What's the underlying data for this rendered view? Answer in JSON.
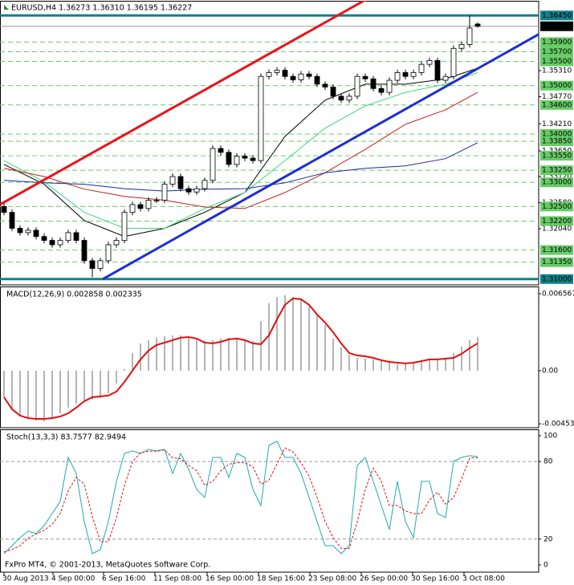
{
  "chart_data": [
    {
      "type": "candlestick",
      "title": "EURUSD,H4  1.36273 1.36310 1.36195 1.36227",
      "up_color": "#ffffff",
      "down_color": "#000000",
      "open": [
        1.325,
        1.3238,
        1.3205,
        1.3196,
        1.3201,
        1.3188,
        1.318,
        1.3171,
        1.318,
        1.3196,
        1.318,
        1.3138,
        1.3122,
        1.3138,
        1.3171,
        1.318,
        1.3238,
        1.3254,
        1.3246,
        1.3263,
        1.3263,
        1.3296,
        1.3312,
        1.3287,
        1.328,
        1.3287,
        1.3304,
        1.337,
        1.3362,
        1.3337,
        1.3354,
        1.335,
        1.3345,
        1.3519,
        1.3527,
        1.3532,
        1.3519,
        1.3512,
        1.3524,
        1.3519,
        1.3503,
        1.3497,
        1.3478,
        1.347,
        1.3478,
        1.3519,
        1.3514,
        1.3494,
        1.3486,
        1.3511,
        1.3527,
        1.3519,
        1.3527,
        1.3544,
        1.3552,
        1.3511,
        1.3519,
        1.3577,
        1.3585,
        1.36273
      ],
      "high": [
        1.3256,
        1.3244,
        1.3211,
        1.3207,
        1.3207,
        1.3194,
        1.3186,
        1.3186,
        1.3202,
        1.3202,
        1.3186,
        1.3144,
        1.3144,
        1.3177,
        1.3186,
        1.3244,
        1.326,
        1.326,
        1.3269,
        1.3269,
        1.3302,
        1.3318,
        1.3318,
        1.3293,
        1.3293,
        1.331,
        1.3376,
        1.3376,
        1.3368,
        1.336,
        1.336,
        1.3356,
        1.3525,
        1.3533,
        1.3538,
        1.3538,
        1.3525,
        1.353,
        1.353,
        1.3525,
        1.3509,
        1.3503,
        1.3484,
        1.3484,
        1.3525,
        1.3525,
        1.352,
        1.35,
        1.3517,
        1.3533,
        1.3533,
        1.3533,
        1.355,
        1.3558,
        1.3558,
        1.3525,
        1.3583,
        1.3591,
        1.3645,
        1.3631
      ],
      "low": [
        1.3232,
        1.3199,
        1.319,
        1.319,
        1.3182,
        1.3174,
        1.3165,
        1.3165,
        1.3174,
        1.3174,
        1.3132,
        1.3104,
        1.3116,
        1.3132,
        1.3165,
        1.3174,
        1.3232,
        1.324,
        1.324,
        1.3257,
        1.3257,
        1.329,
        1.3281,
        1.3274,
        1.3274,
        1.3281,
        1.3298,
        1.3356,
        1.3331,
        1.3331,
        1.3344,
        1.3339,
        1.3339,
        1.3513,
        1.3521,
        1.3513,
        1.3506,
        1.3506,
        1.3513,
        1.3497,
        1.3491,
        1.3472,
        1.3464,
        1.3464,
        1.3472,
        1.3508,
        1.3488,
        1.348,
        1.348,
        1.3505,
        1.3513,
        1.3513,
        1.3521,
        1.3538,
        1.3505,
        1.3505,
        1.3513,
        1.3571,
        1.3579,
        1.36195
      ],
      "close": [
        1.3238,
        1.3205,
        1.3196,
        1.3201,
        1.3188,
        1.318,
        1.3171,
        1.318,
        1.3196,
        1.318,
        1.3138,
        1.3122,
        1.3138,
        1.3171,
        1.318,
        1.3238,
        1.3254,
        1.3246,
        1.3263,
        1.3263,
        1.3296,
        1.3312,
        1.3287,
        1.328,
        1.3287,
        1.3304,
        1.337,
        1.3362,
        1.3337,
        1.3354,
        1.335,
        1.3345,
        1.3519,
        1.3527,
        1.3532,
        1.3519,
        1.3512,
        1.3524,
        1.3519,
        1.3503,
        1.3497,
        1.3478,
        1.347,
        1.3478,
        1.3519,
        1.3514,
        1.3494,
        1.3486,
        1.3511,
        1.3527,
        1.3519,
        1.3527,
        1.3544,
        1.3552,
        1.3511,
        1.3519,
        1.3577,
        1.3585,
        1.3619,
        1.36227
      ],
      "ylim": [
        1.3088,
        1.3677
      ],
      "yticks": [
        {
          "value": 1.3531,
          "label": "1.35310"
        },
        {
          "value": 1.3477,
          "label": "1.34770"
        },
        {
          "value": 1.3421,
          "label": "1.34210"
        },
        {
          "value": 1.3365,
          "label": "1.33650"
        },
        {
          "value": 1.3312,
          "label": "1.33120"
        },
        {
          "value": 1.3258,
          "label": "1.32580"
        },
        {
          "value": 1.3204,
          "label": "1.32040"
        }
      ],
      "levels": {
        "color": "#66cc66",
        "values": [
          {
            "value": 1.359,
            "label": "1.35900"
          },
          {
            "value": 1.357,
            "label": "1.35700"
          },
          {
            "value": 1.355,
            "label": "1.35500"
          },
          {
            "value": 1.35,
            "label": "1.35000"
          },
          {
            "value": 1.346,
            "label": "1.34600"
          },
          {
            "value": 1.34,
            "label": "1.34000"
          },
          {
            "value": 1.3385,
            "label": "1.33850"
          },
          {
            "value": 1.3355,
            "label": "1.33550"
          },
          {
            "value": 1.3325,
            "label": "1.33250"
          },
          {
            "value": 1.33,
            "label": "1.33000"
          },
          {
            "value": 1.325,
            "label": "1.32500"
          },
          {
            "value": 1.322,
            "label": "1.32200"
          },
          {
            "value": 1.316,
            "label": "1.31600"
          },
          {
            "value": 1.3135,
            "label": "1.31350"
          }
        ]
      },
      "range_lines": {
        "color": "#12808a",
        "values": [
          {
            "value": 1.3645,
            "label": "1.36450"
          },
          {
            "value": 1.31,
            "label": "1.31000"
          }
        ]
      },
      "last_price": 1.36227,
      "moving_averages": [
        {
          "color": "#000000",
          "x": [
            0,
            5,
            10,
            15,
            20,
            25,
            30,
            35,
            40,
            45,
            50,
            55,
            59
          ],
          "values": [
            1.3337,
            1.3296,
            1.3221,
            1.3188,
            1.3205,
            1.3238,
            1.3279,
            1.3395,
            1.347,
            1.3503,
            1.3503,
            1.3514,
            1.3536
          ]
        },
        {
          "color": "#3cd67e",
          "x": [
            0,
            5,
            10,
            15,
            20,
            25,
            30,
            35,
            40,
            45,
            50,
            55,
            59
          ],
          "values": [
            1.3345,
            1.3301,
            1.3238,
            1.3205,
            1.3205,
            1.3246,
            1.3279,
            1.3345,
            1.3412,
            1.3458,
            1.3486,
            1.3503,
            1.3527
          ]
        },
        {
          "color": "#c0201c",
          "x": [
            0,
            5,
            10,
            15,
            20,
            25,
            30,
            35,
            40,
            45,
            50,
            55,
            59
          ],
          "values": [
            1.3329,
            1.3312,
            1.3286,
            1.3271,
            1.3263,
            1.3249,
            1.3246,
            1.3279,
            1.332,
            1.3368,
            1.342,
            1.345,
            1.3486
          ]
        },
        {
          "color": "#1a2a9a",
          "x": [
            0,
            5,
            10,
            15,
            20,
            25,
            30,
            35,
            40,
            45,
            50,
            55,
            59
          ],
          "values": [
            1.3304,
            1.3299,
            1.3296,
            1.3287,
            1.3282,
            1.3286,
            1.3287,
            1.3299,
            1.332,
            1.3329,
            1.3334,
            1.3349,
            1.3382
          ]
        }
      ],
      "trendlines": [
        {
          "color": "#e8141c",
          "x": [
            -0.5,
            45
          ],
          "values": [
            1.3254,
            1.3677
          ]
        },
        {
          "color": "#1f2ed1",
          "x": [
            12.3,
            66.7
          ],
          "values": [
            1.31,
            1.3607
          ]
        }
      ],
      "xticks": [
        {
          "value": 0,
          "label": "30 Aug 2013"
        },
        {
          "value": 6.1,
          "label": "4 Sep 00:00"
        },
        {
          "value": 12.4,
          "label": "6 Sep 16:00"
        },
        {
          "value": 18.8,
          "label": "11 Sep 08:00"
        },
        {
          "value": 25.3,
          "label": "16 Sep 00:00"
        },
        {
          "value": 31.7,
          "label": "18 Sep 16:00"
        },
        {
          "value": 38.1,
          "label": "23 Sep 08:00"
        },
        {
          "value": 44.5,
          "label": "26 Sep 00:00"
        },
        {
          "value": 50.9,
          "label": "30 Sep 16:00"
        },
        {
          "value": 57.3,
          "label": "3 Oct 08:00"
        }
      ]
    },
    {
      "type": "macd",
      "title": "MACD(12,26,9) 0.002858 0.002335",
      "ylim": [
        -0.00486,
        0.00711
      ],
      "yticks": [
        0.006567,
        {
          "value": 0,
          "label": "0.00"
        },
        -0.00453
      ],
      "histogram": {
        "color": "#b4b4b4",
        "values": [
          -0.00226,
          -0.00328,
          -0.00383,
          -0.00411,
          -0.00424,
          -0.00431,
          -0.00411,
          -0.00363,
          -0.00315,
          -0.00281,
          -0.0026,
          -0.00246,
          -0.00233,
          -0.00192,
          -0.00109,
          0.00014,
          0.00151,
          0.00233,
          0.0026,
          0.00281,
          0.00294,
          0.00301,
          0.00301,
          0.00287,
          0.00267,
          0.00253,
          0.0026,
          0.00274,
          0.00281,
          0.00274,
          0.0026,
          0.00253,
          0.00424,
          0.00575,
          0.00629,
          0.00643,
          0.00629,
          0.00602,
          0.00547,
          0.00479,
          0.0039,
          0.00274,
          0.00198,
          0.00137,
          0.00109,
          0.00103,
          0.00096,
          0.00082,
          0.00068,
          0.00055,
          0.00055,
          0.00068,
          0.00089,
          0.00103,
          0.00096,
          0.00103,
          0.00151,
          0.00205,
          0.0026,
          0.002858
        ]
      },
      "signal": {
        "color": "#e01010",
        "values": [
          -0.00226,
          -0.00328,
          -0.00383,
          -0.00404,
          -0.00411,
          -0.00411,
          -0.00404,
          -0.0039,
          -0.00363,
          -0.00315,
          -0.0026,
          -0.00226,
          -0.00219,
          -0.00212,
          -0.00178,
          -0.00096,
          0,
          0.00096,
          0.00171,
          0.00219,
          0.00239,
          0.0026,
          0.00281,
          0.00287,
          0.00274,
          0.00239,
          0.00233,
          0.00246,
          0.00267,
          0.00274,
          0.0026,
          0.00233,
          0.00226,
          0.00301,
          0.00438,
          0.00561,
          0.00616,
          0.00609,
          0.00561,
          0.00479,
          0.0041,
          0.00328,
          0.00233,
          0.00151,
          0.0013,
          0.00123,
          0.00109,
          0.00089,
          0.00075,
          0.00068,
          0.00062,
          0.00068,
          0.00082,
          0.00096,
          0.00096,
          0.00103,
          0.00109,
          0.00144,
          0.00192,
          0.002335
        ]
      }
    },
    {
      "type": "stochastic",
      "title": "Stoch(13,3,3) 83.7577 82.9494",
      "ylim": [
        -5.6,
        104.3
      ],
      "yticks": [
        100,
        80,
        20,
        0
      ],
      "levels": [
        80,
        20
      ],
      "main": {
        "color": "#20aab0",
        "values": [
          8.7,
          14.9,
          21.1,
          26.1,
          24.2,
          30.4,
          39.8,
          49.1,
          83.2,
          70.8,
          33.5,
          8.7,
          11.8,
          33.5,
          64.6,
          86.3,
          88.2,
          86.3,
          89.4,
          88.2,
          89.4,
          70.8,
          86.3,
          73.9,
          58.4,
          52.2,
          83.2,
          83.2,
          67.7,
          86.3,
          83.2,
          58.4,
          46.0,
          92.5,
          95.7,
          83.2,
          83.2,
          70.8,
          52.2,
          33.5,
          14.9,
          14.9,
          8.7,
          14.9,
          77.0,
          83.2,
          64.6,
          46.0,
          27.3,
          64.6,
          33.5,
          21.1,
          64.6,
          64.6,
          39.8,
          36.6,
          80.1,
          83.2,
          84.5,
          83.7577
        ]
      },
      "signal": {
        "color": "#e01010",
        "values": [
          10,
          12,
          14.9,
          20.7,
          23.8,
          26.9,
          31.5,
          39.8,
          57.4,
          67.7,
          62.5,
          37.7,
          18.0,
          18.0,
          36.6,
          61.5,
          79.7,
          86.9,
          88.0,
          88.0,
          89.0,
          82.8,
          82.2,
          77.0,
          72.9,
          61.5,
          64.6,
          72.9,
          78.0,
          79.1,
          79.1,
          76.0,
          62.5,
          65.6,
          78.1,
          90.5,
          87.4,
          79.1,
          68.7,
          52.2,
          33.5,
          21.1,
          12.8,
          12.8,
          33.5,
          58.4,
          74.9,
          64.6,
          46.0,
          46.0,
          41.8,
          39.7,
          39.7,
          50.1,
          56.3,
          47.0,
          52.2,
          66.7,
          82.6,
          82.9494
        ]
      }
    }
  ],
  "footer": "FxPro MT4, © 2001-2013, MetaQuotes Software Corp."
}
